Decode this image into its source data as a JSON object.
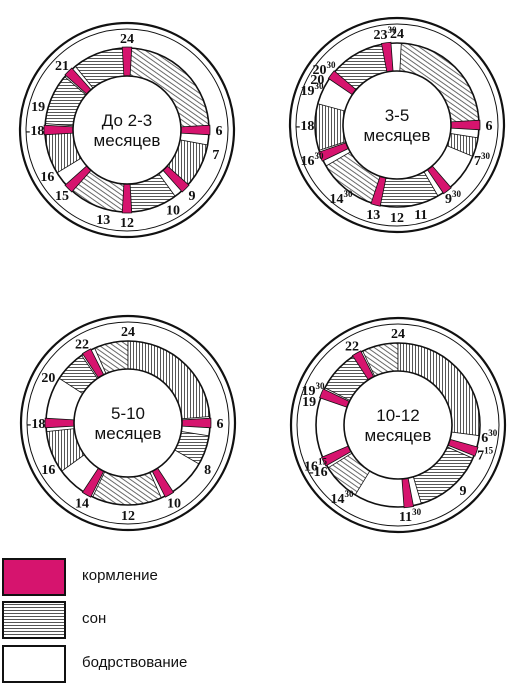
{
  "colors": {
    "feeding": "#d6146e",
    "outline": "#111111",
    "background": "#ffffff"
  },
  "clocks": [
    {
      "title_lines": [
        "До 2-3",
        "месяцев"
      ],
      "sleep": [
        [
          21.4,
          24
        ],
        [
          0.2,
          5.9
        ],
        [
          6.7,
          8.8
        ],
        [
          9.6,
          11.9
        ],
        [
          12.2,
          15.1
        ],
        [
          15.9,
          17.8
        ],
        [
          18.3,
          20.7
        ]
      ],
      "feedings": [
        21,
        24,
        6,
        9,
        12,
        15,
        18
      ],
      "ticks": [
        {
          "h": 24,
          "text": "24",
          "sup": ""
        },
        {
          "h": 21,
          "text": "21",
          "sup": ""
        },
        {
          "h": 19,
          "text": "19",
          "sup": ""
        },
        {
          "h": 18,
          "text": "-18",
          "sup": ""
        },
        {
          "h": 16,
          "text": "16",
          "sup": ""
        },
        {
          "h": 15,
          "text": "15",
          "sup": ""
        },
        {
          "h": 13,
          "text": "13",
          "sup": ""
        },
        {
          "h": 12,
          "text": "12",
          "sup": ""
        },
        {
          "h": 10,
          "text": "10",
          "sup": ""
        },
        {
          "h": 9,
          "text": "9",
          "sup": ""
        },
        {
          "h": 7,
          "text": "7",
          "sup": ""
        },
        {
          "h": 6,
          "text": "6",
          "sup": ""
        }
      ]
    },
    {
      "title_lines": [
        "3-5",
        "месяцев"
      ],
      "sleep": [
        [
          20.7,
          23.3
        ],
        [
          0.2,
          5.8
        ],
        [
          6.6,
          7.5
        ],
        [
          10.0,
          12.8
        ],
        [
          13.2,
          16.0
        ],
        [
          16.8,
          19.0
        ]
      ],
      "feedings": [
        20.5,
        23.5,
        6,
        9.5,
        13,
        16.5
      ],
      "ticks": [
        {
          "h": 23.5,
          "text": "23",
          "sup": "30"
        },
        {
          "h": 24,
          "text": "24",
          "sup": ""
        },
        {
          "h": 20.5,
          "text": "20",
          "sup": "30"
        },
        {
          "h": 20,
          "text": "20",
          "sup": ""
        },
        {
          "h": 19.5,
          "text": "19",
          "sup": "30"
        },
        {
          "h": 18,
          "text": "-18",
          "sup": ""
        },
        {
          "h": 16.5,
          "text": "16",
          "sup": "30"
        },
        {
          "h": 14.5,
          "text": "14",
          "sup": "30"
        },
        {
          "h": 13,
          "text": "13",
          "sup": ""
        },
        {
          "h": 12,
          "text": "12",
          "sup": ""
        },
        {
          "h": 11,
          "text": "11",
          "sup": ""
        },
        {
          "h": 9.5,
          "text": "9",
          "sup": "30"
        },
        {
          "h": 7.5,
          "text": "7",
          "sup": "30"
        },
        {
          "h": 6,
          "text": "6",
          "sup": ""
        }
      ]
    },
    {
      "title_lines": [
        "5-10",
        "месяцев"
      ],
      "sleep": [
        [
          20.2,
          21.7
        ],
        [
          22.4,
          24
        ],
        [
          0,
          5.7
        ],
        [
          6.6,
          8.0
        ],
        [
          10.4,
          13.7
        ],
        [
          15.6,
          17.6
        ]
      ],
      "feedings": [
        22,
        6,
        10,
        14,
        18
      ],
      "ticks": [
        {
          "h": 22,
          "text": "22",
          "sup": ""
        },
        {
          "h": 24,
          "text": "24",
          "sup": ""
        },
        {
          "h": 20,
          "text": "20",
          "sup": ""
        },
        {
          "h": 18,
          "text": "-18",
          "sup": ""
        },
        {
          "h": 16,
          "text": "16",
          "sup": ""
        },
        {
          "h": 14,
          "text": "14",
          "sup": ""
        },
        {
          "h": 12,
          "text": "12",
          "sup": ""
        },
        {
          "h": 10,
          "text": "10",
          "sup": ""
        },
        {
          "h": 8,
          "text": "8",
          "sup": ""
        },
        {
          "h": 6,
          "text": "6",
          "sup": ""
        }
      ]
    },
    {
      "title_lines": [
        "10-12",
        "месяцев"
      ],
      "sleep": [
        [
          19.8,
          21.8
        ],
        [
          22.3,
          24
        ],
        [
          0,
          6.5
        ],
        [
          7.6,
          10.9
        ],
        [
          14.1,
          15.9
        ]
      ],
      "feedings": [
        22,
        19.5,
        7.25,
        11.5,
        16.25
      ],
      "ticks": [
        {
          "h": 22,
          "text": "22",
          "sup": ""
        },
        {
          "h": 24,
          "text": "24",
          "sup": ""
        },
        {
          "h": 19.5,
          "text": "19",
          "sup": "30"
        },
        {
          "h": 19,
          "text": "19",
          "sup": ""
        },
        {
          "h": 16.25,
          "text": "16",
          "sup": "15"
        },
        {
          "h": 16,
          "text": "-16",
          "sup": ""
        },
        {
          "h": 14.5,
          "text": "14",
          "sup": "30"
        },
        {
          "h": 11.5,
          "text": "11",
          "sup": "30"
        },
        {
          "h": 9,
          "text": "9",
          "sup": ""
        },
        {
          "h": 7.25,
          "text": "7",
          "sup": "15"
        },
        {
          "h": 6.5,
          "text": "6",
          "sup": "30"
        }
      ]
    }
  ],
  "legend": [
    {
      "key": "feeding",
      "label": "кормление"
    },
    {
      "key": "sleep",
      "label": "сон"
    },
    {
      "key": "awake",
      "label": "бодрствование"
    }
  ]
}
